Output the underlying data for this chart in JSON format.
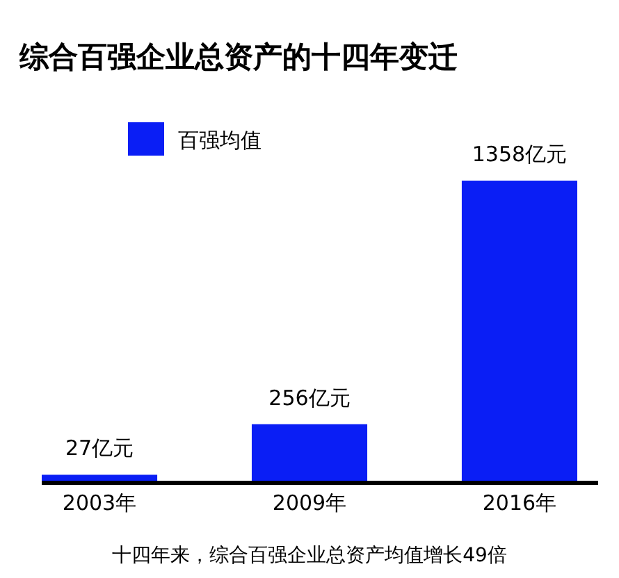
{
  "chart_data": {
    "type": "bar",
    "title": "综合百强企业总资产的十四年变迁",
    "categories": [
      "2003年",
      "2009年",
      "2016年"
    ],
    "series": [
      {
        "name": "百强均值",
        "color": "#0a1ef5",
        "values": [
          27,
          256,
          1358
        ],
        "value_labels": [
          "27亿元",
          "256亿元",
          "1358亿元"
        ]
      }
    ],
    "legend": "top left",
    "grid": false,
    "annotations": [
      "十四年来，综合百强企业总资产均值增长49倍"
    ]
  }
}
